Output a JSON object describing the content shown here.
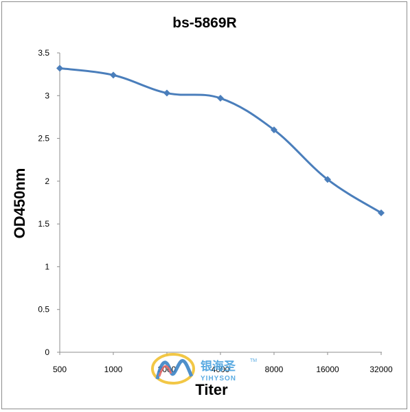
{
  "chart_data": {
    "type": "line",
    "title": "bs-5869R",
    "xlabel": "Titer",
    "ylabel": "OD450nm",
    "categories": [
      "500",
      "1000",
      "2000",
      "4000",
      "8000",
      "16000",
      "32000"
    ],
    "series": [
      {
        "values": [
          3.32,
          3.24,
          3.03,
          2.97,
          2.6,
          2.02,
          1.63
        ]
      }
    ],
    "ylim": [
      0,
      3.5
    ],
    "yticks": [
      "0",
      "0.5",
      "1",
      "1.5",
      "2",
      "2.5",
      "3",
      "3.5"
    ],
    "grid": false,
    "legend": "none",
    "line_color": "#4a7ebb"
  },
  "watermark": {
    "brand_cn": "银海圣",
    "brand_en": "YIHYSON",
    "trademark": "TM"
  }
}
